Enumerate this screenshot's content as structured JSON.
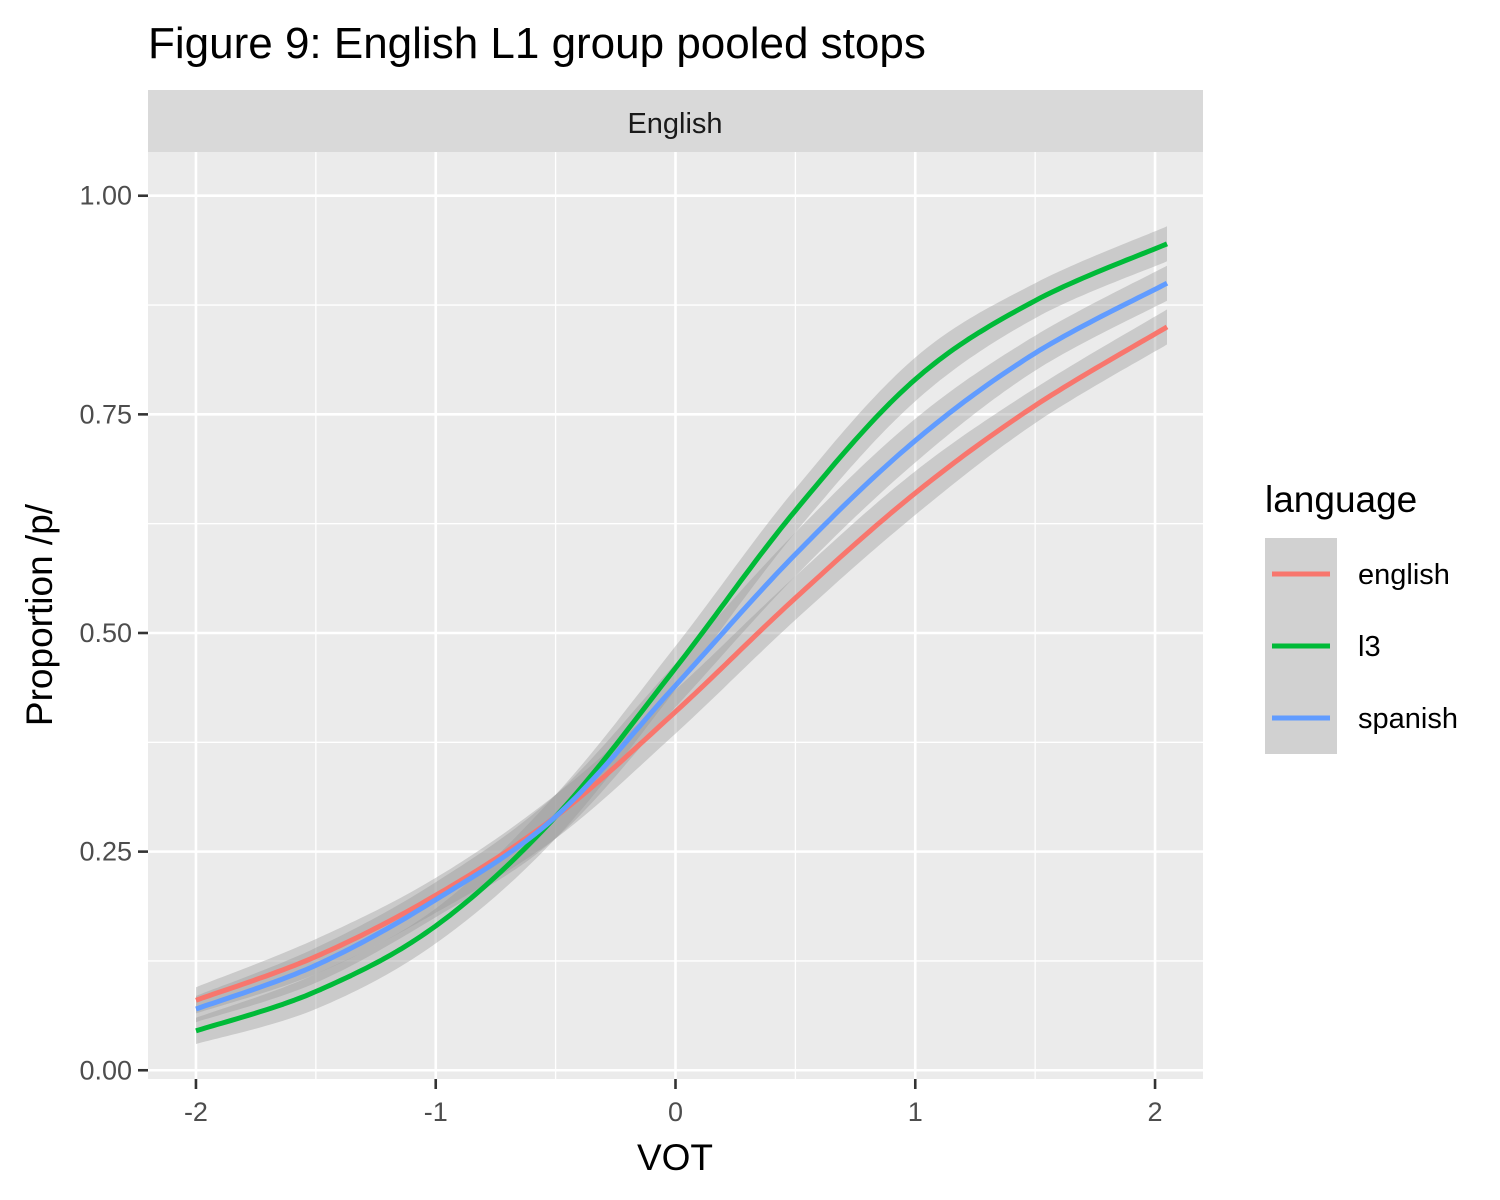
{
  "chart_data": {
    "type": "line",
    "title": "Figure 9: English L1 group pooled stops",
    "facet_label": "English",
    "xlabel": "VOT",
    "ylabel": "Proportion /p/",
    "xlim": [
      -2.2,
      2.2
    ],
    "ylim": [
      -0.01,
      1.05
    ],
    "x_ticks": [
      -2,
      -1,
      0,
      1,
      2
    ],
    "x_tick_labels": [
      "-2",
      "-1",
      "0",
      "1",
      "2"
    ],
    "y_ticks": [
      0,
      0.25,
      0.5,
      0.75,
      1
    ],
    "y_tick_labels": [
      "0.00",
      "0.25",
      "0.50",
      "0.75",
      "1.00"
    ],
    "grid": true,
    "confidence_band": true,
    "legend": {
      "title": "language",
      "position": "right"
    },
    "x": [
      -2,
      -1.5,
      -1,
      -0.5,
      0,
      0.5,
      1,
      1.5,
      2.05
    ],
    "series": [
      {
        "name": "english",
        "color": "#F8766D",
        "values": [
          0.08,
          0.13,
          0.2,
          0.29,
          0.41,
          0.54,
          0.66,
          0.76,
          0.85
        ]
      },
      {
        "name": "l3",
        "color": "#00BA38",
        "values": [
          0.045,
          0.09,
          0.165,
          0.29,
          0.46,
          0.64,
          0.79,
          0.88,
          0.945
        ]
      },
      {
        "name": "spanish",
        "color": "#619CFF",
        "values": [
          0.07,
          0.12,
          0.195,
          0.29,
          0.44,
          0.59,
          0.72,
          0.82,
          0.9
        ]
      }
    ],
    "band_halfwidth": [
      0.015,
      0.02,
      0.02,
      0.025,
      0.025,
      0.025,
      0.025,
      0.02,
      0.02
    ]
  }
}
